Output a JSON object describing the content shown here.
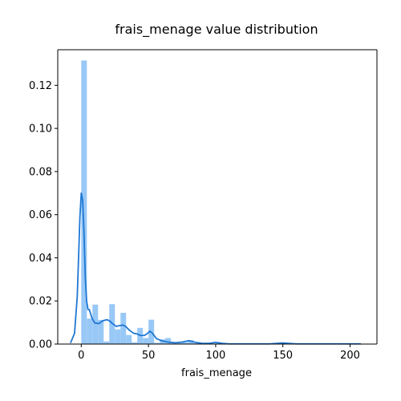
{
  "chart_data": {
    "type": "bar",
    "title": "frais_menage value distribution",
    "xlabel": "frais_menage",
    "ylabel": "",
    "xlim": [
      -17.5,
      220
    ],
    "ylim": [
      0,
      0.1365
    ],
    "x_ticks": [
      0,
      50,
      100,
      150,
      200
    ],
    "y_ticks": [
      0.0,
      0.02,
      0.04,
      0.06,
      0.08,
      0.1,
      0.12
    ],
    "y_tick_labels": [
      "0.00",
      "0.02",
      "0.04",
      "0.06",
      "0.08",
      "0.10",
      "0.12"
    ],
    "grid": false,
    "histogram": {
      "color": "#92c5f6",
      "bin_start": 0,
      "bin_width": 4.17,
      "values": [
        0.1315,
        0.0118,
        0.0183,
        0.0112,
        0.0012,
        0.0185,
        0.0068,
        0.0145,
        0.0042,
        0.0008,
        0.0075,
        0.0028,
        0.0113,
        0.0006,
        0.0022,
        0.0028,
        0.0005,
        0.0004,
        0.0008,
        0.0018,
        0.0004,
        0.0002,
        0.0003,
        0.0002,
        0.0008,
        0.0002,
        0.0002,
        0.0001,
        0.0001,
        0.0001,
        0.0001,
        0.0001,
        0.0001,
        0.0001,
        0.0001,
        0.0001,
        0.0001,
        0.0001,
        0.0001,
        0.0001,
        0.0001,
        0.0001,
        0.0001,
        0.0001,
        0.0001,
        0.0001,
        0.0001,
        0.0001,
        0.0001,
        0.0001
      ]
    },
    "kde": {
      "color": "#1f77d4",
      "x": [
        -8,
        -5,
        -3,
        -2,
        -1,
        0,
        1,
        2,
        3,
        4,
        5,
        6,
        8,
        10,
        13,
        16,
        19,
        21,
        23,
        26,
        28,
        31,
        33,
        36,
        39,
        41,
        44,
        47,
        49,
        51,
        53,
        56,
        60,
        65,
        70,
        75,
        80,
        85,
        90,
        95,
        100,
        105,
        110,
        120,
        130,
        140,
        150,
        160,
        180,
        200,
        208
      ],
      "y": [
        0.0005,
        0.005,
        0.022,
        0.04,
        0.059,
        0.07,
        0.067,
        0.052,
        0.031,
        0.02,
        0.016,
        0.016,
        0.012,
        0.0098,
        0.0095,
        0.0108,
        0.0113,
        0.0108,
        0.0096,
        0.0082,
        0.0085,
        0.0088,
        0.0082,
        0.0063,
        0.005,
        0.0048,
        0.004,
        0.004,
        0.0048,
        0.006,
        0.005,
        0.0025,
        0.0015,
        0.0009,
        0.0006,
        0.0009,
        0.0016,
        0.0008,
        0.0003,
        0.0003,
        0.0008,
        0.0003,
        0.0001,
        0.0001,
        0.0001,
        0.0001,
        0.0005,
        0.0001,
        0.0001,
        0.0001,
        0.0001
      ]
    }
  }
}
